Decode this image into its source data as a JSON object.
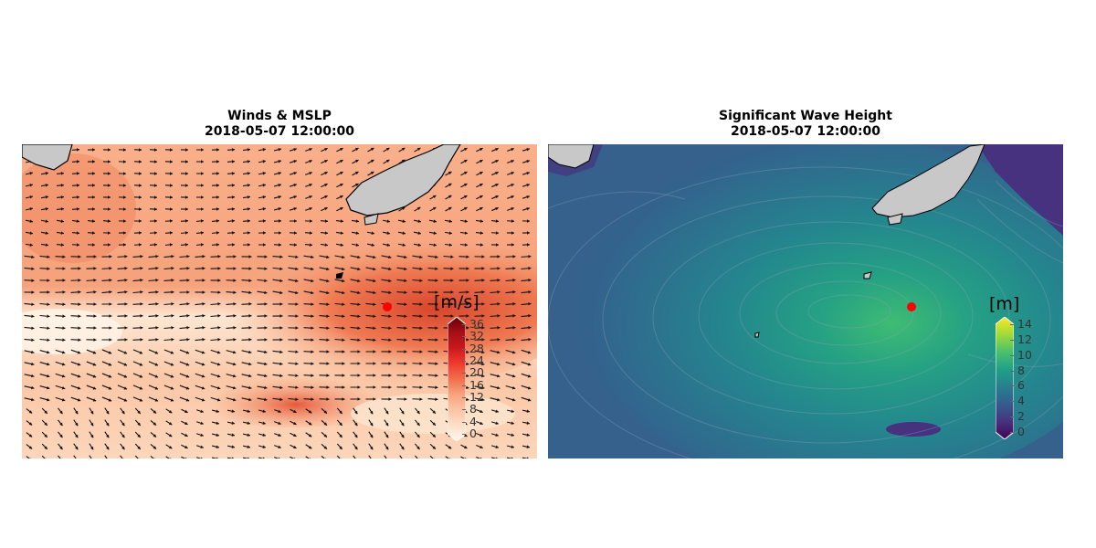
{
  "panels": {
    "winds": {
      "title": "Winds & MSLP",
      "subtitle": "2018-05-07 12:00:00",
      "colorbar": {
        "unit": "[m/s]",
        "ticks": [
          "36",
          "32",
          "28",
          "24",
          "20",
          "16",
          "12",
          "8",
          "4",
          "0"
        ],
        "colors": [
          "#67000d",
          "#a50f15",
          "#cb181d",
          "#ef3b2c",
          "#f16f4e",
          "#f8a47f",
          "#fcc4a6",
          "#fde0c8",
          "#fff5eb"
        ]
      },
      "marker_color": "#ff0000"
    },
    "waves": {
      "title": "Significant Wave Height",
      "subtitle": "2018-05-07 12:00:00",
      "colorbar": {
        "unit": "[m]",
        "ticks": [
          "14",
          "12",
          "10",
          "8",
          "6",
          "4",
          "2",
          "0"
        ],
        "colors": [
          "#fde725",
          "#a0da39",
          "#4ac16d",
          "#1fa187",
          "#277f8e",
          "#365c8d",
          "#46327e",
          "#440154"
        ]
      },
      "marker_color": "#ff0000"
    }
  }
}
